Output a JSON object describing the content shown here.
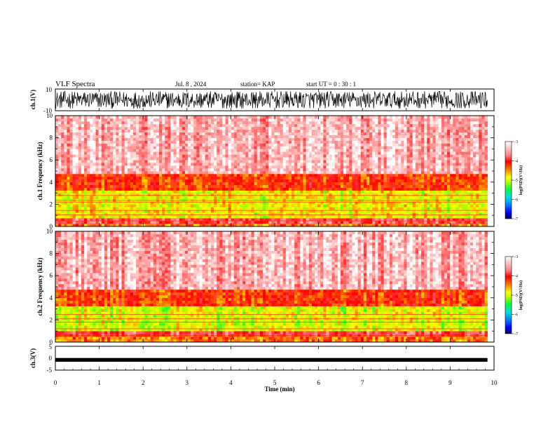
{
  "header": {
    "title": "VLF Spectra",
    "date": "Jul. 8 , 2024",
    "station": "station= KAP",
    "start": "start UT = 0 : 30 : 1"
  },
  "colors": {
    "background": "#ffffff",
    "axes": "#000000",
    "colormap": [
      "#000060",
      "#0000ff",
      "#00a0ff",
      "#00e0e0",
      "#00ff40",
      "#a0ff00",
      "#ffff00",
      "#ffa000",
      "#ff0000",
      "#ff9090",
      "#ffffff"
    ]
  },
  "chart_data": [
    {
      "type": "line",
      "panel": "ch1-waveform",
      "ylabel": "ch.1(V)",
      "ylim": [
        -10,
        10
      ],
      "yticks": [
        "10",
        "-10"
      ],
      "xlim": [
        0,
        10
      ],
      "description_values": {
        "typical_amplitude_V": [
          -8,
          8
        ],
        "end_time_min": 9.85
      }
    },
    {
      "type": "heatmap",
      "panel": "ch1-spectrogram",
      "ylabel": "ch.1 Frequency (kHz)",
      "ylim": [
        0,
        10
      ],
      "yticks": [
        "0",
        "2",
        "4",
        "6",
        "8",
        "10"
      ],
      "xlim": [
        0,
        10
      ],
      "end_time_min": 9.85,
      "bands": [
        {
          "f_low_khz": 0.0,
          "f_high_khz": 0.3,
          "log_psd": -4.3
        },
        {
          "f_low_khz": 0.3,
          "f_high_khz": 0.8,
          "log_psd": -3.7
        },
        {
          "f_low_khz": 0.8,
          "f_high_khz": 3.2,
          "log_psd": -4.7
        },
        {
          "f_low_khz": 3.2,
          "f_high_khz": 4.8,
          "log_psd": -4.1
        },
        {
          "f_low_khz": 4.8,
          "f_high_khz": 10.0,
          "log_psd": -3.3
        }
      ],
      "lines_khz": [
        0.5,
        1.05,
        1.45,
        2.2,
        2.35,
        2.8
      ],
      "colorbar": {
        "label": "log(PSD)(V²/Hz)",
        "range": [
          -7,
          -3
        ],
        "ticks": [
          "-3",
          "-4",
          "-5",
          "-6",
          "-7"
        ]
      }
    },
    {
      "type": "heatmap",
      "panel": "ch2-spectrogram",
      "ylabel": "ch.2 Frequency (kHz)",
      "ylim": [
        0,
        10
      ],
      "yticks": [
        "0",
        "2",
        "4",
        "6",
        "8",
        "10"
      ],
      "xlim": [
        0,
        10
      ],
      "end_time_min": 9.85,
      "bands": [
        {
          "f_low_khz": 0.0,
          "f_high_khz": 0.4,
          "log_psd": -4.3
        },
        {
          "f_low_khz": 0.4,
          "f_high_khz": 0.9,
          "log_psd": -3.7
        },
        {
          "f_low_khz": 0.9,
          "f_high_khz": 3.2,
          "log_psd": -4.8
        },
        {
          "f_low_khz": 3.2,
          "f_high_khz": 4.8,
          "log_psd": -4.1
        },
        {
          "f_low_khz": 4.8,
          "f_high_khz": 10.0,
          "log_psd": -3.3
        }
      ],
      "lines_khz": [
        0.6,
        1.2,
        1.8,
        2.1,
        2.5
      ],
      "colorbar": {
        "label": "log(PSD)(V²/Hz)",
        "range": [
          -7,
          -3
        ],
        "ticks": [
          "-3",
          "-4",
          "-5",
          "-6",
          "-7"
        ]
      }
    },
    {
      "type": "line",
      "panel": "ch3-waveform",
      "ylabel": "ch.3(V)",
      "ylim": [
        -5,
        5
      ],
      "yticks": [
        "5",
        "0",
        "-5"
      ],
      "xlim": [
        0,
        10
      ],
      "xlabel": "Time (min)",
      "xticks": [
        "0",
        "1",
        "2",
        "3",
        "4",
        "5",
        "6",
        "7",
        "8",
        "9",
        "10"
      ],
      "description_values": {
        "level_V": [
          -1.5,
          -0.5
        ],
        "end_time_min": 9.85
      }
    }
  ]
}
